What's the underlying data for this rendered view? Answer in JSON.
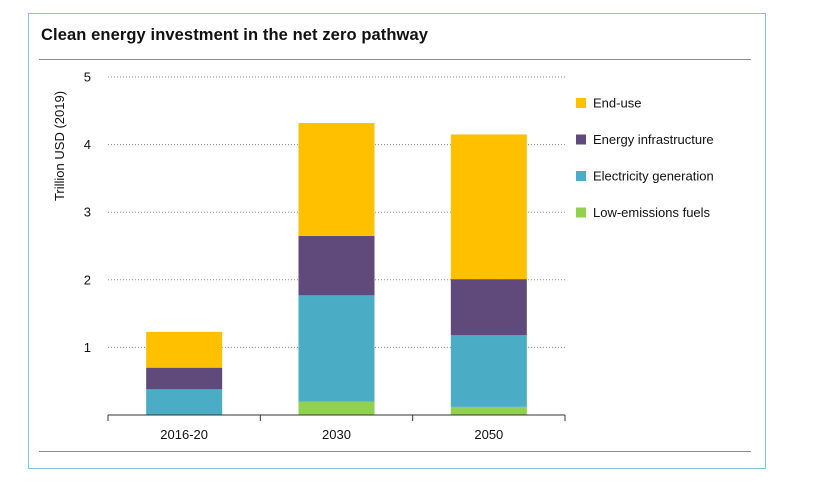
{
  "chart_data": {
    "type": "bar",
    "stacked": true,
    "title": "Clean energy investment in the net zero pathway",
    "xlabel": "",
    "ylabel": "Trillion USD (2019)",
    "ylim": [
      0,
      5
    ],
    "yticks": [
      1,
      2,
      3,
      4,
      5
    ],
    "grid": true,
    "legend_position": "right",
    "categories": [
      "2016-20",
      "2030",
      "2050"
    ],
    "series": [
      {
        "name": "Low-emissions fuels",
        "color": "#92d050",
        "values": [
          0.0,
          0.2,
          0.12
        ]
      },
      {
        "name": "Electricity generation",
        "color": "#4bacc6",
        "values": [
          0.38,
          1.57,
          1.06
        ]
      },
      {
        "name": "Energy infrastructure",
        "color": "#604a7b",
        "values": [
          0.32,
          0.88,
          0.83
        ]
      },
      {
        "name": "End-use",
        "color": "#ffc000",
        "values": [
          0.53,
          1.67,
          2.14
        ]
      }
    ]
  }
}
